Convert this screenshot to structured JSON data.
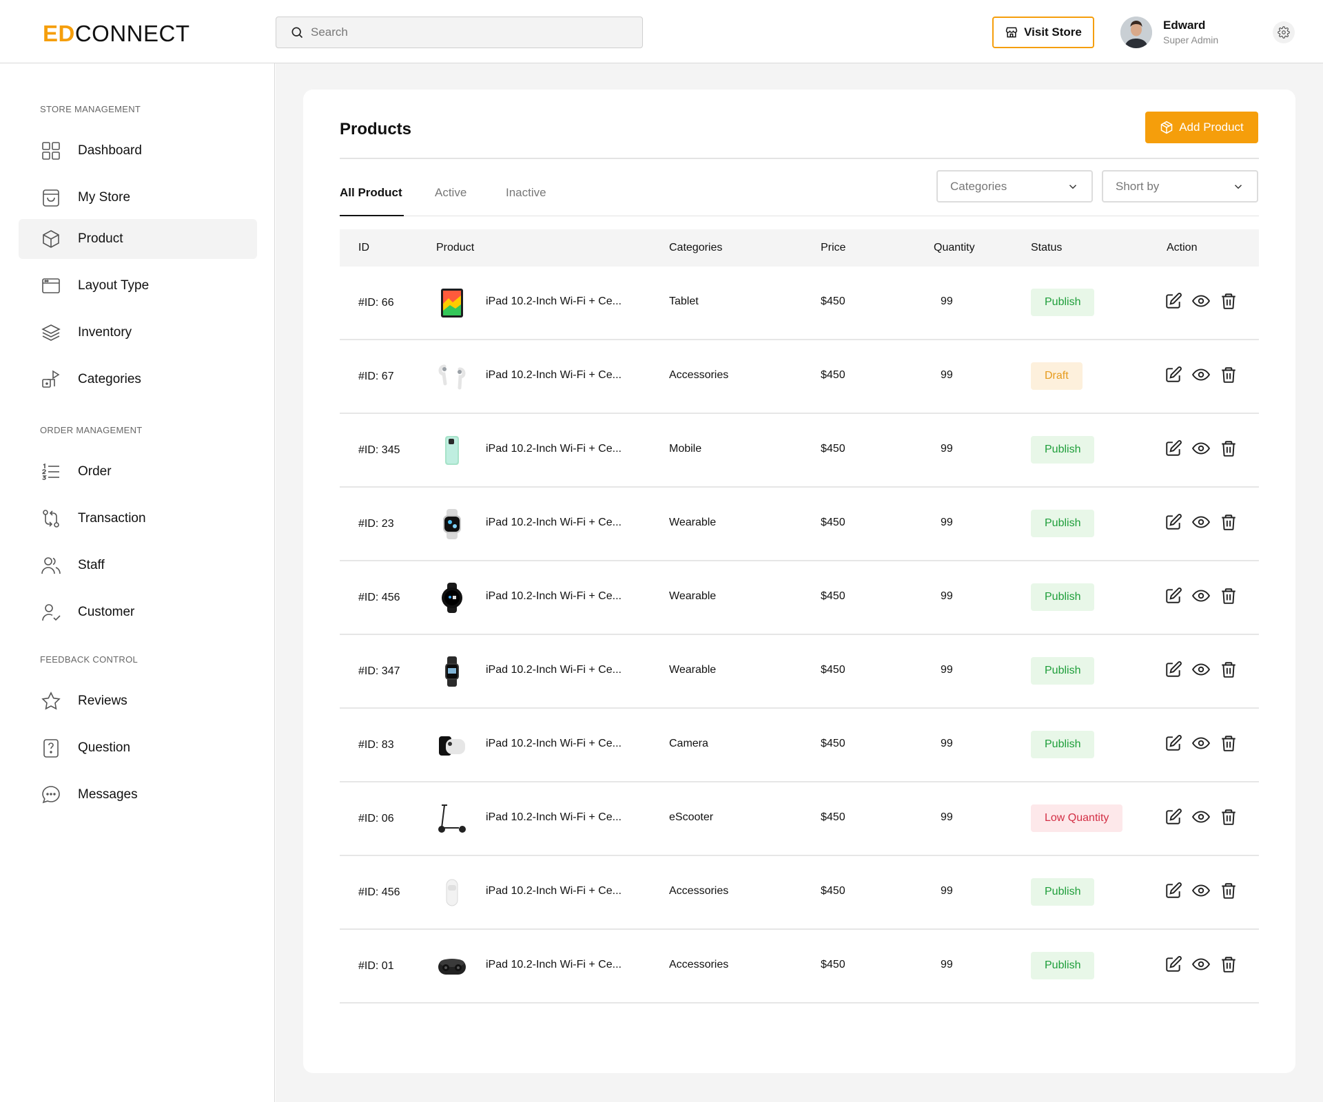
{
  "header": {
    "logo_accent": "ED",
    "logo_rest": "CONNECT",
    "search_placeholder": "Search",
    "visit_store_label": "Visit Store",
    "user_name": "Edward",
    "user_role": "Super Admin"
  },
  "sidebar": {
    "sections": [
      {
        "title": "STORE MANAGEMENT"
      },
      {
        "title": "ORDER MANAGEMENT"
      },
      {
        "title": "FEEDBACK CONTROL"
      }
    ],
    "items": [
      {
        "label": "Dashboard",
        "icon": "grid-icon"
      },
      {
        "label": "My Store",
        "icon": "bag-icon"
      },
      {
        "label": "Product",
        "icon": "box-icon",
        "active": true
      },
      {
        "label": "Layout Type",
        "icon": "browser-window-icon"
      },
      {
        "label": "Inventory",
        "icon": "layers-icon"
      },
      {
        "label": "Categories",
        "icon": "shapes-icon"
      },
      {
        "label": "Order",
        "icon": "numbered-list-icon"
      },
      {
        "label": "Transaction",
        "icon": "arrows-exchange-icon"
      },
      {
        "label": "Staff",
        "icon": "users-icon"
      },
      {
        "label": "Customer",
        "icon": "user-check-icon"
      },
      {
        "label": "Reviews",
        "icon": "star-icon"
      },
      {
        "label": "Question",
        "icon": "help-document-icon"
      },
      {
        "label": "Messages",
        "icon": "chat-bubble-icon"
      }
    ]
  },
  "main": {
    "title": "Products",
    "add_product_label": "Add Product",
    "tabs": [
      {
        "label": "All Product",
        "active": true
      },
      {
        "label": "Active"
      },
      {
        "label": "Inactive"
      }
    ],
    "filters": {
      "categories_placeholder": "Categories",
      "sort_placeholder": "Short by"
    },
    "table": {
      "columns": [
        "ID",
        "Product",
        "Categories",
        "Price",
        "Quantity",
        "Status",
        "Action"
      ],
      "rows": [
        {
          "id": "#ID: 66",
          "product": "iPad 10.2-Inch Wi-Fi + Ce...",
          "thumb": "tablet",
          "category": "Tablet",
          "price": "$450",
          "quantity": "99",
          "status": "Publish",
          "status_type": "publish"
        },
        {
          "id": "#ID: 67",
          "product": "iPad 10.2-Inch Wi-Fi + Ce...",
          "thumb": "earbuds",
          "category": "Accessories",
          "price": "$450",
          "quantity": "99",
          "status": "Draft",
          "status_type": "draft"
        },
        {
          "id": "#ID: 345",
          "product": "iPad 10.2-Inch Wi-Fi + Ce...",
          "thumb": "phone",
          "category": "Mobile",
          "price": "$450",
          "quantity": "99",
          "status": "Publish",
          "status_type": "publish"
        },
        {
          "id": "#ID: 23",
          "product": "iPad 10.2-Inch Wi-Fi + Ce...",
          "thumb": "watch-silver",
          "category": "Wearable",
          "price": "$450",
          "quantity": "99",
          "status": "Publish",
          "status_type": "publish"
        },
        {
          "id": "#ID: 456",
          "product": "iPad 10.2-Inch Wi-Fi + Ce...",
          "thumb": "watch-round",
          "category": "Wearable",
          "price": "$450",
          "quantity": "99",
          "status": "Publish",
          "status_type": "publish"
        },
        {
          "id": "#ID: 347",
          "product": "iPad 10.2-Inch Wi-Fi + Ce...",
          "thumb": "watch-band",
          "category": "Wearable",
          "price": "$450",
          "quantity": "99",
          "status": "Publish",
          "status_type": "publish"
        },
        {
          "id": "#ID: 83",
          "product": "iPad 10.2-Inch Wi-Fi + Ce...",
          "thumb": "camera",
          "category": "Camera",
          "price": "$450",
          "quantity": "99",
          "status": "Publish",
          "status_type": "publish"
        },
        {
          "id": "#ID: 06",
          "product": "iPad 10.2-Inch Wi-Fi + Ce...",
          "thumb": "scooter",
          "category": "eScooter",
          "price": "$450",
          "quantity": "99",
          "status": "Low Quantity",
          "status_type": "low"
        },
        {
          "id": "#ID: 456",
          "product": "iPad 10.2-Inch Wi-Fi + Ce...",
          "thumb": "airtag",
          "category": "Accessories",
          "price": "$450",
          "quantity": "99",
          "status": "Publish",
          "status_type": "publish"
        },
        {
          "id": "#ID: 01",
          "product": "iPad 10.2-Inch Wi-Fi + Ce...",
          "thumb": "earbuds-case",
          "category": "Accessories",
          "price": "$450",
          "quantity": "99",
          "status": "Publish",
          "status_type": "publish"
        }
      ]
    }
  },
  "colors": {
    "accent": "#f59e0b",
    "publish_bg": "#e8f7e8",
    "publish_text": "#1e9e3a",
    "draft_bg": "#fdf0dc",
    "draft_text": "#e69b1d",
    "low_bg": "#fde8ea",
    "low_text": "#d32f45"
  }
}
